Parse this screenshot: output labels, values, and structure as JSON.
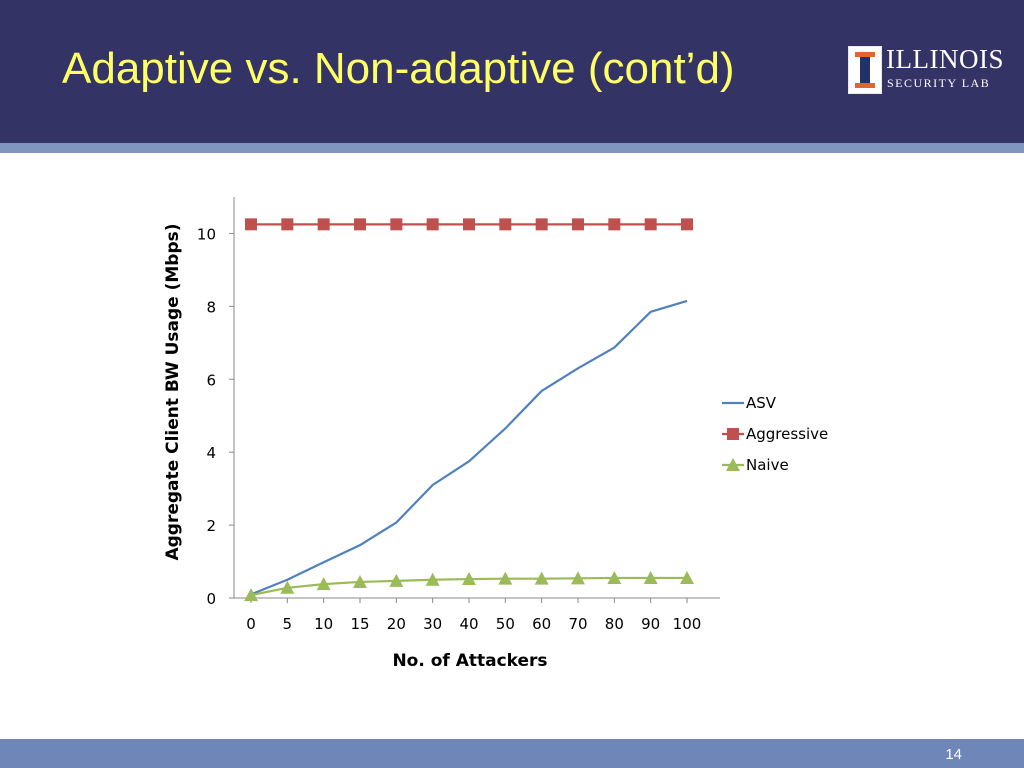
{
  "slide": {
    "title": "Adaptive vs. Non-adaptive (cont’d)",
    "logo_name": "ILLINOIS",
    "logo_sub": "SECURITY LAB",
    "page_number": "14"
  },
  "colors": {
    "header_bg": "#333366",
    "title": "#ffff66",
    "asv": "#4f81bd",
    "aggressive": "#c0504d",
    "naive": "#9bbb59"
  },
  "chart_data": {
    "type": "line",
    "xlabel": "No. of Attackers",
    "ylabel": "Aggregate Client BW Usage (Mbps)",
    "categories": [
      "0",
      "5",
      "10",
      "15",
      "20",
      "30",
      "40",
      "50",
      "60",
      "70",
      "80",
      "90",
      "100"
    ],
    "ylim": [
      0,
      11
    ],
    "yticks": [
      0,
      2,
      4,
      6,
      8,
      10
    ],
    "grid": false,
    "legend_position": "right",
    "series": [
      {
        "name": "ASV",
        "marker": "none",
        "values": [
          0.1,
          0.5,
          0.98,
          1.45,
          2.07,
          3.1,
          3.75,
          4.65,
          5.68,
          6.3,
          6.87,
          7.85,
          8.15
        ]
      },
      {
        "name": "Aggressive",
        "marker": "square",
        "values": [
          10.25,
          10.25,
          10.25,
          10.25,
          10.25,
          10.25,
          10.25,
          10.25,
          10.25,
          10.25,
          10.25,
          10.25,
          10.25
        ]
      },
      {
        "name": "Naive",
        "marker": "triangle",
        "values": [
          0.08,
          0.28,
          0.38,
          0.44,
          0.47,
          0.5,
          0.52,
          0.53,
          0.53,
          0.54,
          0.55,
          0.55,
          0.55
        ]
      }
    ]
  }
}
